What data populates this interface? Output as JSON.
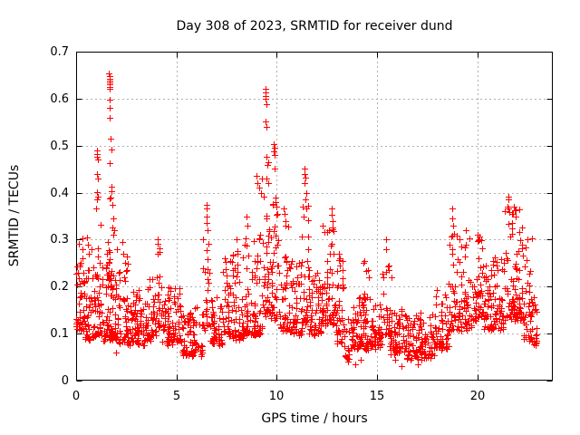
{
  "page": {
    "background": "#ffffff"
  },
  "chart_data": {
    "type": "scatter",
    "title": "Day 308 of 2023, SRMTID for receiver dund",
    "xlabel": "GPS time / hours",
    "ylabel": "SRMTID / TECUs",
    "xlim": [
      0,
      23.75
    ],
    "ylim": [
      0,
      0.7
    ],
    "xticks": [
      0,
      5,
      10,
      15,
      20
    ],
    "yticks": [
      0,
      0.1,
      0.2,
      0.3,
      0.4,
      0.5,
      0.6,
      0.7
    ],
    "grid": {
      "show": true,
      "color": "#b0b0b0",
      "dash": "2,3"
    },
    "axis_color": "#000000",
    "marker": {
      "shape": "plus",
      "color": "#ff0000",
      "size": 7
    },
    "points_model": {
      "seed": 20231108,
      "band_segments": [
        [
          0.0,
          0.35,
          40,
          0.11,
          0.3,
          2.6
        ],
        [
          0.35,
          1.0,
          60,
          0.09,
          0.26,
          2.4
        ],
        [
          1.0,
          1.25,
          28,
          0.1,
          0.36,
          1.9
        ],
        [
          1.25,
          2.05,
          80,
          0.09,
          0.3,
          2.5
        ],
        [
          1.55,
          1.85,
          16,
          0.18,
          0.43,
          1.6
        ],
        [
          2.05,
          2.6,
          50,
          0.08,
          0.26,
          2.3
        ],
        [
          2.6,
          3.4,
          70,
          0.08,
          0.19,
          2.0
        ],
        [
          3.4,
          4.0,
          55,
          0.09,
          0.22,
          2.2
        ],
        [
          4.0,
          4.2,
          18,
          0.11,
          0.3,
          1.7
        ],
        [
          4.2,
          5.2,
          80,
          0.08,
          0.2,
          2.3
        ],
        [
          5.2,
          6.3,
          85,
          0.055,
          0.16,
          1.9
        ],
        [
          6.3,
          6.65,
          26,
          0.11,
          0.3,
          1.6
        ],
        [
          6.65,
          7.3,
          55,
          0.08,
          0.18,
          2.0
        ],
        [
          7.3,
          7.65,
          30,
          0.1,
          0.26,
          2.1
        ],
        [
          7.65,
          8.35,
          62,
          0.09,
          0.28,
          2.3
        ],
        [
          8.35,
          9.3,
          85,
          0.1,
          0.32,
          2.4
        ],
        [
          9.3,
          9.65,
          32,
          0.14,
          0.42,
          1.7
        ],
        [
          9.65,
          10.15,
          45,
          0.13,
          0.4,
          1.9
        ],
        [
          10.15,
          10.65,
          40,
          0.11,
          0.33,
          2.1
        ],
        [
          10.65,
          11.25,
          50,
          0.1,
          0.26,
          2.1
        ],
        [
          11.25,
          11.6,
          30,
          0.12,
          0.38,
          1.9
        ],
        [
          11.6,
          12.25,
          55,
          0.1,
          0.24,
          2.1
        ],
        [
          12.25,
          12.95,
          62,
          0.12,
          0.35,
          2.0
        ],
        [
          12.95,
          13.35,
          35,
          0.08,
          0.27,
          2.1
        ],
        [
          13.35,
          13.75,
          22,
          0.045,
          0.14,
          1.6
        ],
        [
          13.75,
          14.65,
          75,
          0.07,
          0.19,
          2.1
        ],
        [
          14.2,
          14.45,
          12,
          0.12,
          0.25,
          1.6
        ],
        [
          14.65,
          15.25,
          48,
          0.07,
          0.16,
          1.9
        ],
        [
          15.25,
          15.6,
          24,
          0.1,
          0.3,
          1.9
        ],
        [
          15.6,
          16.45,
          68,
          0.06,
          0.15,
          1.8
        ],
        [
          16.45,
          17.85,
          105,
          0.05,
          0.14,
          1.8
        ],
        [
          17.85,
          18.55,
          55,
          0.07,
          0.19,
          2.0
        ],
        [
          18.55,
          19.05,
          40,
          0.11,
          0.33,
          1.9
        ],
        [
          19.05,
          19.75,
          55,
          0.11,
          0.3,
          2.2
        ],
        [
          19.75,
          20.3,
          45,
          0.13,
          0.31,
          2.0
        ],
        [
          20.3,
          21.35,
          90,
          0.11,
          0.26,
          2.0
        ],
        [
          21.35,
          22.3,
          88,
          0.13,
          0.37,
          2.0
        ],
        [
          22.3,
          22.7,
          34,
          0.09,
          0.3,
          1.9
        ],
        [
          22.7,
          22.95,
          22,
          0.08,
          0.19,
          1.8
        ]
      ],
      "outlier_points": [
        [
          0.3,
          0.302
        ],
        [
          0.55,
          0.305
        ],
        [
          0.58,
          0.29
        ],
        [
          0.62,
          0.27
        ],
        [
          0.75,
          0.28
        ],
        [
          0.98,
          0.366
        ],
        [
          1.02,
          0.49
        ],
        [
          1.04,
          0.483
        ],
        [
          1.05,
          0.476
        ],
        [
          1.07,
          0.47
        ],
        [
          1.06,
          0.44
        ],
        [
          1.08,
          0.43
        ],
        [
          1.05,
          0.401
        ],
        [
          1.07,
          0.392
        ],
        [
          1.06,
          0.385
        ],
        [
          1.64,
          0.654
        ],
        [
          1.66,
          0.648
        ],
        [
          1.65,
          0.642
        ],
        [
          1.67,
          0.638
        ],
        [
          1.66,
          0.634
        ],
        [
          1.65,
          0.63
        ],
        [
          1.67,
          0.625
        ],
        [
          1.66,
          0.62
        ],
        [
          1.68,
          0.597
        ],
        [
          1.67,
          0.581
        ],
        [
          1.69,
          0.56
        ],
        [
          1.7,
          0.514
        ],
        [
          1.74,
          0.491
        ],
        [
          1.68,
          0.463
        ],
        [
          1.76,
          0.412
        ],
        [
          1.78,
          0.403
        ],
        [
          1.82,
          0.375
        ],
        [
          1.85,
          0.345
        ],
        [
          1.9,
          0.32
        ],
        [
          2.3,
          0.295
        ],
        [
          2.35,
          0.27
        ],
        [
          4.05,
          0.3
        ],
        [
          4.07,
          0.27
        ],
        [
          6.48,
          0.375
        ],
        [
          6.5,
          0.366
        ],
        [
          6.52,
          0.35
        ],
        [
          6.5,
          0.335
        ],
        [
          6.55,
          0.32
        ],
        [
          7.4,
          0.26
        ],
        [
          8.0,
          0.3
        ],
        [
          8.02,
          0.27
        ],
        [
          8.5,
          0.35
        ],
        [
          8.52,
          0.33
        ],
        [
          9.0,
          0.435
        ],
        [
          9.05,
          0.42
        ],
        [
          9.1,
          0.41
        ],
        [
          9.2,
          0.4
        ],
        [
          9.25,
          0.43
        ],
        [
          9.42,
          0.621
        ],
        [
          9.44,
          0.613
        ],
        [
          9.43,
          0.605
        ],
        [
          9.45,
          0.6
        ],
        [
          9.46,
          0.589
        ],
        [
          9.44,
          0.551
        ],
        [
          9.46,
          0.539
        ],
        [
          9.5,
          0.476
        ],
        [
          9.55,
          0.465
        ],
        [
          9.52,
          0.459
        ],
        [
          9.47,
          0.43
        ],
        [
          9.55,
          0.42
        ],
        [
          9.85,
          0.504
        ],
        [
          9.87,
          0.495
        ],
        [
          9.86,
          0.487
        ],
        [
          9.88,
          0.48
        ],
        [
          9.9,
          0.452
        ],
        [
          9.92,
          0.39
        ],
        [
          9.95,
          0.38
        ],
        [
          10.35,
          0.366
        ],
        [
          10.4,
          0.355
        ],
        [
          10.42,
          0.34
        ],
        [
          10.45,
          0.33
        ],
        [
          11.38,
          0.452
        ],
        [
          11.4,
          0.44
        ],
        [
          11.42,
          0.431
        ],
        [
          11.4,
          0.42
        ],
        [
          11.45,
          0.4
        ],
        [
          11.43,
          0.385
        ],
        [
          11.47,
          0.366
        ],
        [
          11.35,
          0.35
        ],
        [
          12.72,
          0.367
        ],
        [
          12.75,
          0.352
        ],
        [
          12.78,
          0.34
        ],
        [
          13.1,
          0.27
        ],
        [
          14.3,
          0.25
        ],
        [
          14.55,
          0.235
        ],
        [
          14.6,
          0.22
        ],
        [
          15.45,
          0.3
        ],
        [
          15.7,
          0.22
        ],
        [
          18.72,
          0.366
        ],
        [
          18.75,
          0.345
        ],
        [
          18.78,
          0.33
        ],
        [
          19.4,
          0.32
        ],
        [
          20.0,
          0.31
        ],
        [
          20.1,
          0.3
        ],
        [
          21.52,
          0.391
        ],
        [
          21.54,
          0.386
        ],
        [
          21.5,
          0.37
        ],
        [
          21.55,
          0.366
        ],
        [
          21.6,
          0.358
        ],
        [
          21.9,
          0.35
        ],
        [
          22.1,
          0.364
        ],
        [
          22.5,
          0.3
        ],
        [
          2.0,
          0.06
        ],
        [
          5.6,
          0.055
        ],
        [
          13.55,
          0.04
        ],
        [
          13.9,
          0.035
        ],
        [
          14.2,
          0.045
        ],
        [
          15.9,
          0.045
        ],
        [
          16.2,
          0.03
        ],
        [
          17.0,
          0.035
        ],
        [
          17.5,
          0.05
        ]
      ]
    }
  }
}
